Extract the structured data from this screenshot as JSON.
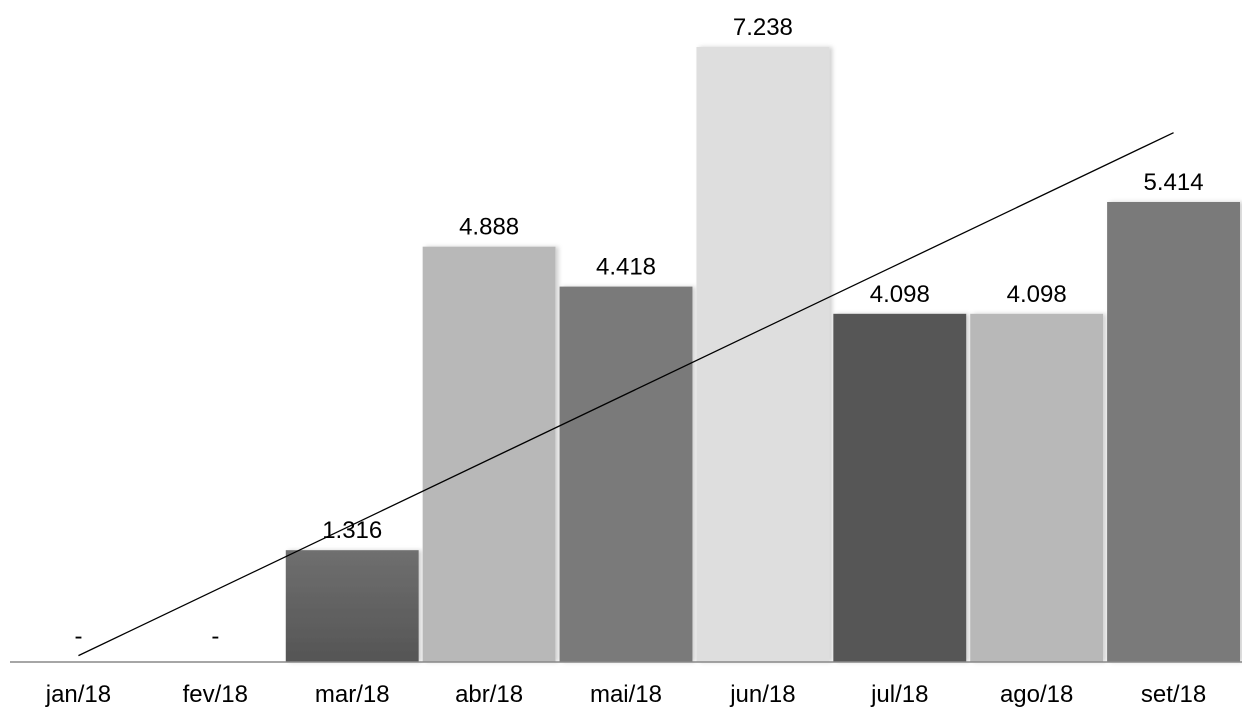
{
  "chart_data": {
    "type": "bar",
    "categories": [
      "jan/18",
      "fev/18",
      "mar/18",
      "abr/18",
      "mai/18",
      "jun/18",
      "jul/18",
      "ago/18",
      "set/18"
    ],
    "values": [
      0,
      0,
      1316,
      4888,
      4418,
      7238,
      4098,
      4098,
      5414
    ],
    "data_labels": [
      "-",
      "-",
      "1.316",
      "4.888",
      "4.418",
      "7.238",
      "4.098",
      "4.098",
      "5.414"
    ],
    "bar_colors": [
      "#595959",
      "#595959",
      "#606060",
      "#b8b8b8",
      "#7a7a7a",
      "#dedede",
      "#575757",
      "#b8b8b8",
      "#7a7a7a"
    ],
    "ylim": [
      0,
      7238
    ],
    "trendline": {
      "type": "linear",
      "color": "#000000",
      "start_value": 75,
      "end_value": 6230
    },
    "grid": false,
    "legend": "none",
    "title": "",
    "xlabel": "",
    "ylabel": ""
  }
}
